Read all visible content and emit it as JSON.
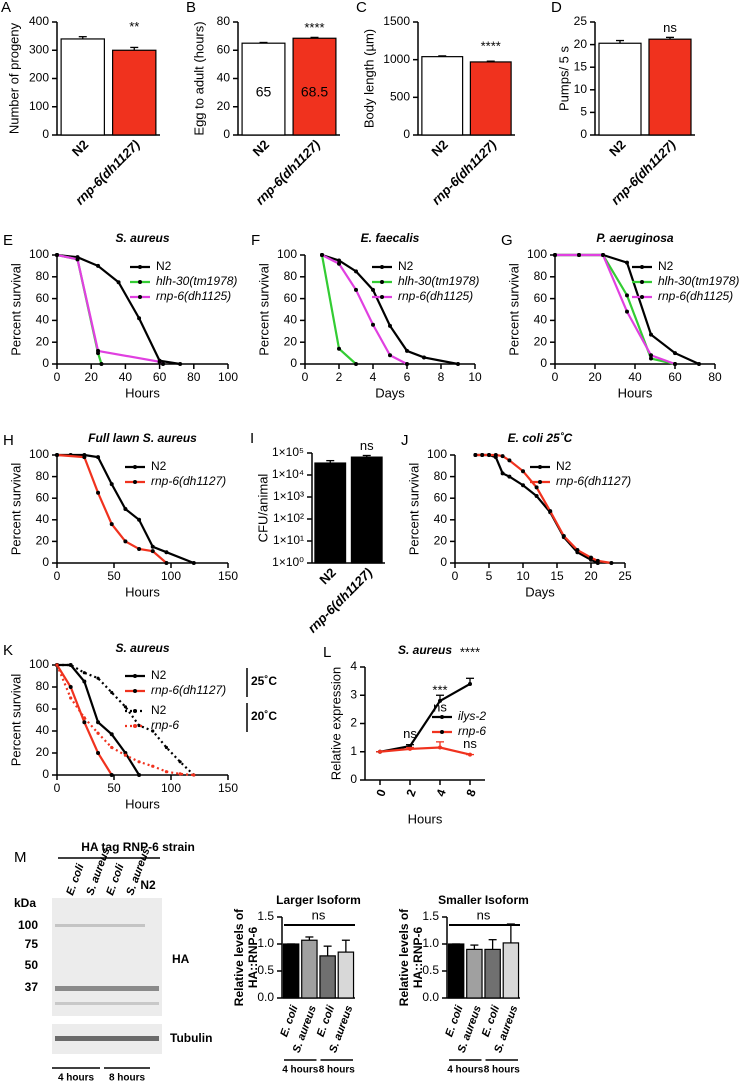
{
  "chart_data": [
    {
      "type": "bar",
      "panel": "A",
      "ylabel": "Number of progeny",
      "categories": [
        "N2",
        "rnp-6(dh1127)"
      ],
      "values": [
        340,
        300
      ],
      "errors": [
        8,
        10
      ],
      "colors": [
        "#ffffff",
        "#f0321e"
      ],
      "ylim": [
        0,
        400
      ],
      "yticks": [
        0,
        100,
        200,
        300,
        400
      ],
      "annotation": "**"
    },
    {
      "type": "bar",
      "panel": "B",
      "ylabel": "Egg to adult (hours)",
      "categories": [
        "N2",
        "rnp-6(dh1127)"
      ],
      "values": [
        65,
        68.5
      ],
      "errors": [
        0.5,
        0.6
      ],
      "colors": [
        "#ffffff",
        "#f0321e"
      ],
      "ylim": [
        0,
        80
      ],
      "yticks": [
        0,
        20,
        40,
        60,
        80
      ],
      "annotation": "****",
      "data_labels": true
    },
    {
      "type": "bar",
      "panel": "C",
      "ylabel": "Body length (µm)",
      "categories": [
        "N2",
        "rnp-6(dh1127)"
      ],
      "values": [
        1040,
        970
      ],
      "errors": [
        10,
        10
      ],
      "colors": [
        "#ffffff",
        "#f0321e"
      ],
      "ylim": [
        0,
        1500
      ],
      "yticks": [
        0,
        500,
        1000,
        1500
      ],
      "annotation": "****"
    },
    {
      "type": "bar",
      "panel": "D",
      "ylabel": "Pumps/ 5 s",
      "categories": [
        "N2",
        "rnp-6(dh1127)"
      ],
      "values": [
        20.3,
        21.2
      ],
      "errors": [
        0.6,
        0.4
      ],
      "colors": [
        "#ffffff",
        "#f0321e"
      ],
      "ylim": [
        0,
        25
      ],
      "yticks": [
        0,
        5,
        10,
        15,
        20,
        25
      ],
      "annotation": "ns"
    },
    {
      "type": "line",
      "panel": "E",
      "title": "S. aureus",
      "xlabel": "Hours",
      "ylabel": "Percent survival",
      "xlim": [
        0,
        100
      ],
      "xticks": [
        0,
        20,
        40,
        60,
        80,
        100
      ],
      "ylim": [
        0,
        100
      ],
      "yticks": [
        0,
        20,
        40,
        60,
        80,
        100
      ],
      "series": [
        {
          "name": "N2",
          "color": "#000000",
          "x": [
            0,
            12,
            24,
            36,
            48,
            60,
            72
          ],
          "values": [
            100,
            98,
            90,
            75,
            42,
            3,
            0
          ]
        },
        {
          "name": "hlh-30(tm1978)",
          "color": "#33cc33",
          "x": [
            0,
            12,
            24,
            26
          ],
          "values": [
            100,
            96,
            10,
            0
          ]
        },
        {
          "name": "rnp-6(dh1125)",
          "color": "#e040e0",
          "x": [
            0,
            12,
            24,
            60,
            62
          ],
          "values": [
            100,
            96,
            12,
            2,
            0
          ]
        }
      ]
    },
    {
      "type": "line",
      "panel": "F",
      "title": "E. faecalis",
      "xlabel": "Days",
      "ylabel": "Percent survival",
      "xlim": [
        0,
        10
      ],
      "xticks": [
        0,
        2,
        4,
        6,
        8,
        10
      ],
      "ylim": [
        0,
        100
      ],
      "yticks": [
        0,
        20,
        40,
        60,
        80,
        100
      ],
      "series": [
        {
          "name": "N2",
          "color": "#000000",
          "x": [
            1,
            2,
            3,
            4,
            5,
            6,
            7,
            9
          ],
          "values": [
            100,
            95,
            85,
            68,
            35,
            12,
            6,
            0
          ]
        },
        {
          "name": "hlh-30(tm1978)",
          "color": "#33cc33",
          "x": [
            1,
            2,
            3
          ],
          "values": [
            100,
            14,
            0
          ]
        },
        {
          "name": "rnp-6(dh1125)",
          "color": "#e040e0",
          "x": [
            1,
            2,
            3,
            4,
            5,
            6
          ],
          "values": [
            100,
            92,
            68,
            36,
            8,
            0
          ]
        }
      ]
    },
    {
      "type": "line",
      "panel": "G",
      "title": "P. aeruginosa",
      "xlabel": "Hours",
      "ylabel": "Percent survival",
      "xlim": [
        0,
        80
      ],
      "xticks": [
        0,
        20,
        40,
        60,
        80
      ],
      "ylim": [
        0,
        100
      ],
      "yticks": [
        0,
        20,
        40,
        60,
        80,
        100
      ],
      "series": [
        {
          "name": "N2",
          "color": "#000000",
          "x": [
            0,
            12,
            24,
            36,
            48,
            60,
            72
          ],
          "values": [
            100,
            100,
            100,
            93,
            27,
            10,
            0
          ]
        },
        {
          "name": "hlh-30(tm1978)",
          "color": "#33cc33",
          "x": [
            0,
            12,
            24,
            36,
            48,
            60
          ],
          "values": [
            100,
            100,
            100,
            63,
            5,
            0
          ]
        },
        {
          "name": "rnp-6(dh1125)",
          "color": "#e040e0",
          "x": [
            0,
            12,
            24,
            36,
            48,
            60
          ],
          "values": [
            100,
            100,
            100,
            48,
            8,
            0
          ]
        }
      ]
    },
    {
      "type": "line",
      "panel": "H",
      "title": "Full lawn S. aureus",
      "xlabel": "Hours",
      "ylabel": "Percent survival",
      "xlim": [
        0,
        150
      ],
      "xticks": [
        0,
        50,
        100,
        150
      ],
      "ylim": [
        0,
        100
      ],
      "yticks": [
        0,
        20,
        40,
        60,
        80,
        100
      ],
      "series": [
        {
          "name": "N2",
          "color": "#000000",
          "x": [
            0,
            12,
            24,
            36,
            48,
            60,
            72,
            84,
            96,
            120
          ],
          "values": [
            100,
            100,
            100,
            98,
            73,
            50,
            40,
            15,
            10,
            0
          ]
        },
        {
          "name": "rnp-6(dh1127)",
          "color": "#f0321e",
          "x": [
            0,
            24,
            36,
            48,
            60,
            72,
            84,
            96
          ],
          "values": [
            100,
            98,
            65,
            36,
            20,
            13,
            11,
            0
          ]
        }
      ]
    },
    {
      "type": "bar",
      "panel": "I",
      "ylabel": "CFU/animal",
      "categories": [
        "N2",
        "rnp-6(dh1127)"
      ],
      "values": [
        35000,
        65000
      ],
      "errors": [
        10000,
        12000
      ],
      "colors": [
        "#000000",
        "#000000"
      ],
      "log_scale": true,
      "ylim": [
        1,
        100000
      ],
      "yticks": [
        {
          "value": 1,
          "label": "1×10⁰"
        },
        {
          "value": 10,
          "label": "1×10¹"
        },
        {
          "value": 100,
          "label": "1×10²"
        },
        {
          "value": 1000,
          "label": "1×10³"
        },
        {
          "value": 10000,
          "label": "1×10⁴"
        },
        {
          "value": 100000,
          "label": "1×10⁵"
        }
      ],
      "annotation": "ns"
    },
    {
      "type": "line",
      "panel": "J",
      "title": "E. coli 25˚C",
      "xlabel": "Days",
      "ylabel": "Percent survival",
      "xlim": [
        0,
        25
      ],
      "xticks": [
        0,
        5,
        10,
        15,
        20,
        25
      ],
      "ylim": [
        0,
        100
      ],
      "yticks": [
        0,
        20,
        40,
        60,
        80,
        100
      ],
      "series": [
        {
          "name": "N2",
          "color": "#000000",
          "x": [
            3,
            4,
            5,
            6,
            7,
            8,
            10,
            12,
            14,
            16,
            18,
            20,
            21
          ],
          "values": [
            100,
            100,
            100,
            98,
            83,
            80,
            72,
            62,
            47,
            24,
            10,
            3,
            0
          ]
        },
        {
          "name": "rnp-6(dh1127)",
          "color": "#f0321e",
          "x": [
            3,
            4,
            5,
            6,
            7,
            8,
            10,
            12,
            14,
            16,
            18,
            20,
            21,
            23
          ],
          "values": [
            100,
            100,
            100,
            100,
            99,
            95,
            85,
            70,
            48,
            25,
            12,
            5,
            2,
            0
          ]
        }
      ]
    },
    {
      "type": "line",
      "panel": "K",
      "title": "S. aureus",
      "xlabel": "Hours",
      "ylabel": "Percent survival",
      "xlim": [
        0,
        150
      ],
      "xticks": [
        0,
        50,
        100,
        150
      ],
      "ylim": [
        0,
        100
      ],
      "yticks": [
        0,
        20,
        40,
        60,
        80,
        100
      ],
      "legend_groups": [
        "25˚C",
        "20˚C"
      ],
      "series": [
        {
          "name": "N2",
          "color": "#000000",
          "x": [
            0,
            12,
            24,
            36,
            48,
            60,
            72
          ],
          "values": [
            100,
            100,
            85,
            48,
            37,
            20,
            0
          ]
        },
        {
          "name": "rnp-6(dh1127)",
          "color": "#f0321e",
          "x": [
            0,
            12,
            24,
            36,
            48
          ],
          "values": [
            100,
            80,
            48,
            20,
            0
          ]
        },
        {
          "name": "N2",
          "color": "#000000",
          "line_style": "dotted",
          "x": [
            0,
            12,
            24,
            36,
            48,
            60,
            72,
            84,
            96,
            108,
            120
          ],
          "values": [
            100,
            100,
            93,
            88,
            75,
            62,
            45,
            40,
            25,
            12,
            0
          ]
        },
        {
          "name": "rnp-6",
          "color": "#f0321e",
          "line_style": "dotted",
          "x": [
            0,
            12,
            24,
            36,
            48,
            60,
            72,
            84,
            96,
            108,
            120
          ],
          "values": [
            100,
            70,
            52,
            38,
            25,
            18,
            12,
            8,
            3,
            1,
            0
          ]
        }
      ]
    },
    {
      "type": "line",
      "panel": "L",
      "title": "S. aureus",
      "xlabel": "Hours",
      "ylabel": "Relative expression",
      "categories": [
        "0",
        "2",
        "4",
        "8"
      ],
      "ylim": [
        0,
        4
      ],
      "yticks": [
        0,
        1,
        2,
        3,
        4
      ],
      "annotations": [
        "ns",
        "***",
        "****",
        "ns",
        "ns"
      ],
      "series": [
        {
          "name": "ilys-2",
          "color": "#000000",
          "values": [
            1,
            1.2,
            2.8,
            3.4
          ],
          "errors": [
            0,
            0.05,
            0.2,
            0.2
          ]
        },
        {
          "name": "rnp-6",
          "color": "#f0321e",
          "values": [
            1,
            1.1,
            1.15,
            0.9
          ],
          "errors": [
            0,
            0.05,
            0.2,
            0
          ]
        }
      ]
    },
    {
      "type": "bar",
      "title": "Larger Isoform",
      "ylabel": [
        "Relative levels of",
        "HA::RNP-6"
      ],
      "categories": [
        "E. coli",
        "S. aureus",
        "E. coli",
        "S. aureus"
      ],
      "groups": [
        "4 hours",
        "8 hours"
      ],
      "values": [
        1.0,
        1.07,
        0.78,
        0.85
      ],
      "errors": [
        0,
        0.06,
        0.18,
        0.22
      ],
      "colors": [
        "#000000",
        "#a0a0a0",
        "#707070",
        "#d8d8d8"
      ],
      "ylim": [
        0,
        1.5
      ],
      "yticks": [
        {
          "value": 0,
          "label": "0.0"
        },
        0.5,
        {
          "value": 1,
          "label": "1.0"
        },
        1.5
      ],
      "annotation": "ns"
    },
    {
      "type": "bar",
      "title": "Smaller Isoform",
      "ylabel": [
        "Relative levels of",
        "HA::RNP-6"
      ],
      "categories": [
        "E. coli",
        "S. aureus",
        "E. coli",
        "S. aureus"
      ],
      "groups": [
        "4 hours",
        "8 hours"
      ],
      "values": [
        1.0,
        0.9,
        0.9,
        1.02
      ],
      "errors": [
        0,
        0.08,
        0.18,
        0.35
      ],
      "colors": [
        "#000000",
        "#a0a0a0",
        "#707070",
        "#d8d8d8"
      ],
      "ylim": [
        0,
        1.5
      ],
      "yticks": [
        {
          "value": 0,
          "label": "0.0"
        },
        0.5,
        {
          "value": 1,
          "label": "1.0"
        },
        1.5
      ],
      "annotation": "ns"
    }
  ],
  "blot": {
    "panel": "M",
    "strain": "HA tag RNP-6 strain",
    "lanes": [
      "E. coli",
      "S. aureus",
      "E. coli",
      "S. aureus",
      "N2"
    ],
    "unit": "kDa",
    "markers": [
      "100",
      "75",
      "50",
      "37"
    ],
    "bands": [
      "HA",
      "Tubulin"
    ],
    "times": [
      "4 hours",
      "8 hours"
    ]
  }
}
